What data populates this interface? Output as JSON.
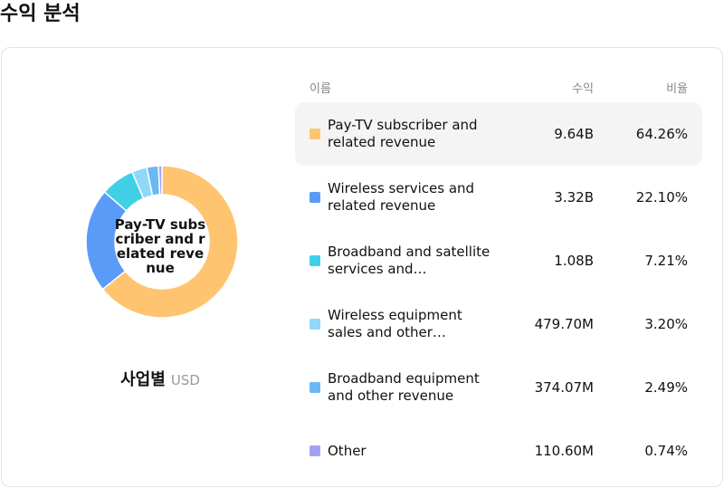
{
  "page": {
    "title": "수익 분석"
  },
  "chart": {
    "center_label": "Pay-TV subscriber and related revenue",
    "caption": "사업별",
    "unit": "USD"
  },
  "table": {
    "headers": {
      "name": "이름",
      "revenue": "수익",
      "ratio": "비율"
    },
    "rows": [
      {
        "name": "Pay-TV subscriber and related revenue",
        "revenue": "9.64B",
        "ratio": "64.26%",
        "color": "#FFC470",
        "selected": true
      },
      {
        "name": "Wireless services and related revenue",
        "revenue": "3.32B",
        "ratio": "22.10%",
        "color": "#5B9BF8",
        "selected": false
      },
      {
        "name": "Broadband and satellite services and…",
        "revenue": "1.08B",
        "ratio": "7.21%",
        "color": "#3FD0E6",
        "selected": false
      },
      {
        "name": "Wireless equipment sales and other…",
        "revenue": "479.70M",
        "ratio": "3.20%",
        "color": "#90D8F8",
        "selected": false
      },
      {
        "name": "Broadband equipment and other revenue",
        "revenue": "374.07M",
        "ratio": "2.49%",
        "color": "#6CB8F4",
        "selected": false
      },
      {
        "name": "Other",
        "revenue": "110.60M",
        "ratio": "0.74%",
        "color": "#A3A0F4",
        "selected": false
      }
    ]
  },
  "chart_data": {
    "type": "pie",
    "categories": [
      "Pay-TV subscriber and related revenue",
      "Wireless services and related revenue",
      "Broadband and satellite services and…",
      "Wireless equipment sales and other…",
      "Broadband equipment and other revenue",
      "Other"
    ],
    "values": [
      64.26,
      22.1,
      7.21,
      3.2,
      2.49,
      0.74
    ],
    "colors": [
      "#FFC470",
      "#5B9BF8",
      "#3FD0E6",
      "#90D8F8",
      "#6CB8F4",
      "#A3A0F4"
    ],
    "donut": true
  }
}
